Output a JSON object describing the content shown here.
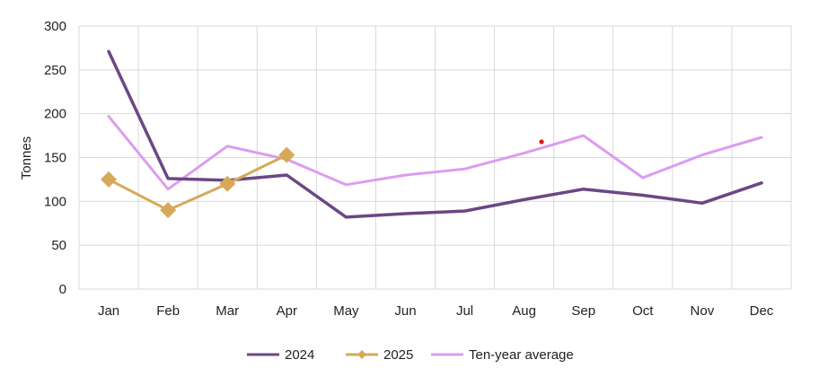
{
  "chart_data": {
    "type": "line",
    "title": "",
    "xlabel": "",
    "ylabel": "Tonnes",
    "categories": [
      "Jan",
      "Feb",
      "Mar",
      "Apr",
      "May",
      "Jun",
      "Jul",
      "Aug",
      "Sep",
      "Oct",
      "Nov",
      "Dec"
    ],
    "ylim": [
      0,
      300
    ],
    "yticks": [
      0,
      50,
      100,
      150,
      200,
      250,
      300
    ],
    "grid": true,
    "legend_position": "bottom",
    "series": [
      {
        "name": "2024",
        "color": "#6b4784",
        "marker": "none",
        "values": [
          271,
          126,
          124,
          130,
          82,
          86,
          89,
          102,
          114,
          107,
          98,
          121
        ]
      },
      {
        "name": "2025",
        "color": "#d6a95a",
        "marker": "diamond",
        "values": [
          125,
          90,
          120,
          153,
          null,
          null,
          null,
          null,
          null,
          null,
          null,
          null
        ]
      },
      {
        "name": "Ten-year average",
        "color": "#dc9cf0",
        "marker": "none",
        "values": [
          197,
          114,
          163,
          148,
          119,
          130,
          137,
          155,
          175,
          127,
          153,
          173
        ]
      }
    ]
  }
}
